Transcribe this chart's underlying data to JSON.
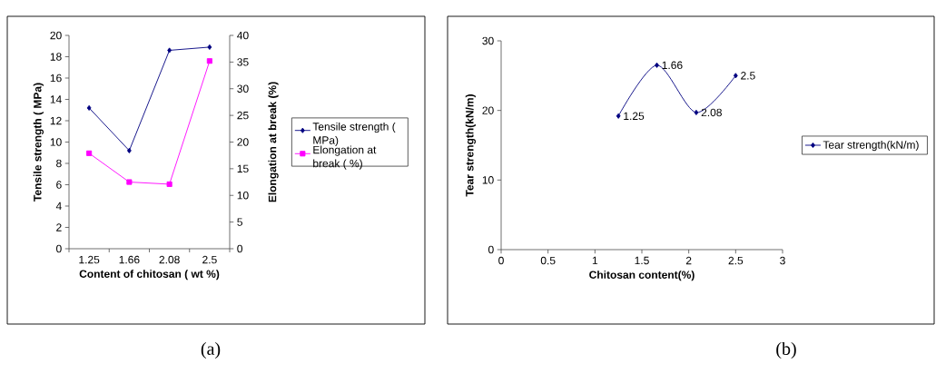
{
  "chart_data": [
    {
      "type": "line",
      "categories": [
        "1.25",
        "1.66",
        "2.08",
        "2.5"
      ],
      "series": [
        {
          "name": "Tensile strength ( MPa)",
          "color": "#000080",
          "marker": "diamond",
          "values": [
            13.2,
            9.2,
            18.6,
            18.9
          ]
        },
        {
          "name": "Elongation at break ( %)",
          "color": "#ff00ff",
          "marker": "square",
          "axis": "y2",
          "values": [
            17.9,
            12.5,
            12.1,
            35.2
          ]
        }
      ],
      "xlabel": "Content of chitosan ( wt %)",
      "ylabel": "Tensile strength ( MPa)",
      "y2label": "Elongation at break (%)",
      "ylim": [
        0,
        20
      ],
      "yticks": [
        0,
        2,
        4,
        6,
        8,
        10,
        12,
        14,
        16,
        18,
        20
      ],
      "y2lim": [
        0,
        40
      ],
      "y2ticks": [
        0,
        5,
        10,
        15,
        20,
        25,
        30,
        35,
        40
      ],
      "legend": "right",
      "grid": false,
      "line_style": "solid",
      "annotations": [
        "(a)"
      ]
    },
    {
      "type": "line",
      "x": [
        1.25,
        1.66,
        2.08,
        2.5
      ],
      "series": [
        {
          "name": "Tear strength(kN/m)",
          "color": "#000080",
          "marker": "diamond",
          "values": [
            19.2,
            26.5,
            19.7,
            25.0
          ]
        }
      ],
      "xlabel": "Chitosan content(%)",
      "ylabel": "Tear strength(kN/m)",
      "xlim": [
        0,
        3
      ],
      "xticks": [
        0,
        0.5,
        1,
        1.5,
        2,
        2.5,
        3
      ],
      "ylim": [
        0,
        30
      ],
      "yticks": [
        0,
        10,
        20,
        30
      ],
      "legend": "right",
      "grid": false,
      "line_style": "solid",
      "annotations": [
        {
          "text": "1.25",
          "x": 1.25,
          "y": 19.2
        },
        {
          "text": "1.66",
          "x": 1.66,
          "y": 26.5
        },
        {
          "text": "2.08",
          "x": 2.08,
          "y": 19.7
        },
        {
          "text": "2.5",
          "x": 2.5,
          "y": 25.0
        },
        "(b)"
      ]
    }
  ]
}
